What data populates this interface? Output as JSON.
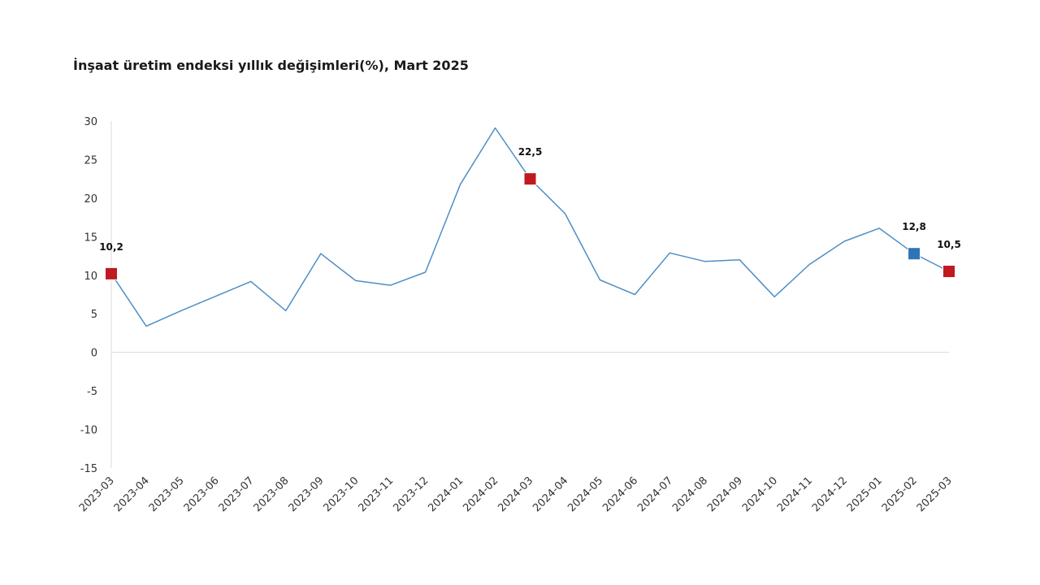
{
  "chart_data": {
    "type": "line",
    "title": "İnşaat üretim endeksi yıllık değişimleri(%), Mart 2025",
    "xlabel": "",
    "ylabel": "",
    "ylim": [
      -15,
      30
    ],
    "yticks": [
      30,
      25,
      20,
      15,
      10,
      5,
      0,
      -5,
      -10,
      -15
    ],
    "grid": false,
    "legend": "none",
    "categories": [
      "2023-03",
      "2023-04",
      "2023-05",
      "2023-06",
      "2023-07",
      "2023-08",
      "2023-09",
      "2023-10",
      "2023-11",
      "2023-12",
      "2024-01",
      "2024-02",
      "2024-03",
      "2024-04",
      "2024-05",
      "2024-06",
      "2024-07",
      "2024-08",
      "2024-09",
      "2024-10",
      "2024-11",
      "2024-12",
      "2025-01",
      "2025-02",
      "2025-03"
    ],
    "series": [
      {
        "values": [
          10.2,
          3.4,
          5.4,
          7.3,
          9.2,
          5.4,
          12.8,
          9.3,
          8.7,
          10.4,
          21.8,
          29.1,
          22.5,
          18.0,
          9.4,
          7.5,
          12.9,
          11.8,
          12.0,
          7.2,
          11.4,
          14.4,
          16.1,
          12.8,
          10.5
        ],
        "color": "#4f8ec5"
      }
    ],
    "highlights": [
      {
        "category": "2023-03",
        "value": 10.2,
        "label": "10,2",
        "color": "#c0191f"
      },
      {
        "category": "2024-03",
        "value": 22.5,
        "label": "22,5",
        "color": "#c0191f"
      },
      {
        "category": "2025-02",
        "value": 12.8,
        "label": "12,8",
        "color": "#2e75b6"
      },
      {
        "category": "2025-03",
        "value": 10.5,
        "label": "10,5",
        "color": "#c0191f"
      }
    ],
    "colors": {
      "line": "#4f8ec5",
      "axis": "#d9d9d9",
      "highlight_red": "#c0191f",
      "highlight_blue": "#2e75b6"
    }
  }
}
